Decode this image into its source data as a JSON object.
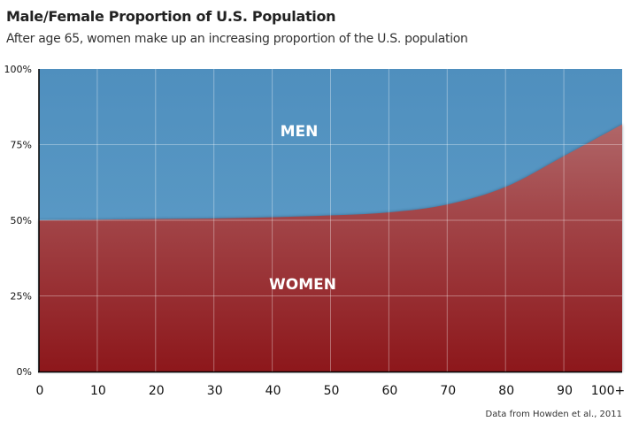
{
  "title": "Male/Female Proportion of U.S. Population",
  "subtitle": "After age 65, women make up an increasing proportion of the U.S. population",
  "source": "Data from Howden et al., 2011",
  "chart_data": {
    "type": "area",
    "stacked": true,
    "xlabel": "",
    "ylabel": "",
    "x": [
      0,
      10,
      20,
      30,
      40,
      50,
      60,
      70,
      80,
      90,
      100
    ],
    "x_tick_labels": [
      "0",
      "10",
      "20",
      "30",
      "40",
      "50",
      "60",
      "70",
      "80",
      "90",
      "100+"
    ],
    "y_tick_labels": [
      "0%",
      "25%",
      "50%",
      "75%",
      "100%"
    ],
    "ylim": [
      0,
      100
    ],
    "xlim": [
      0,
      100
    ],
    "grid": true,
    "series": [
      {
        "name": "WOMEN",
        "color": "#9a2a2d",
        "values": [
          50.0,
          50.2,
          50.4,
          50.6,
          51.0,
          51.6,
          52.6,
          55.2,
          61.0,
          71.2,
          81.7
        ]
      },
      {
        "name": "MEN",
        "color": "#5596c2",
        "values": [
          50.0,
          49.8,
          49.6,
          49.4,
          49.0,
          48.4,
          47.4,
          44.8,
          39.0,
          28.8,
          18.3
        ]
      }
    ]
  }
}
